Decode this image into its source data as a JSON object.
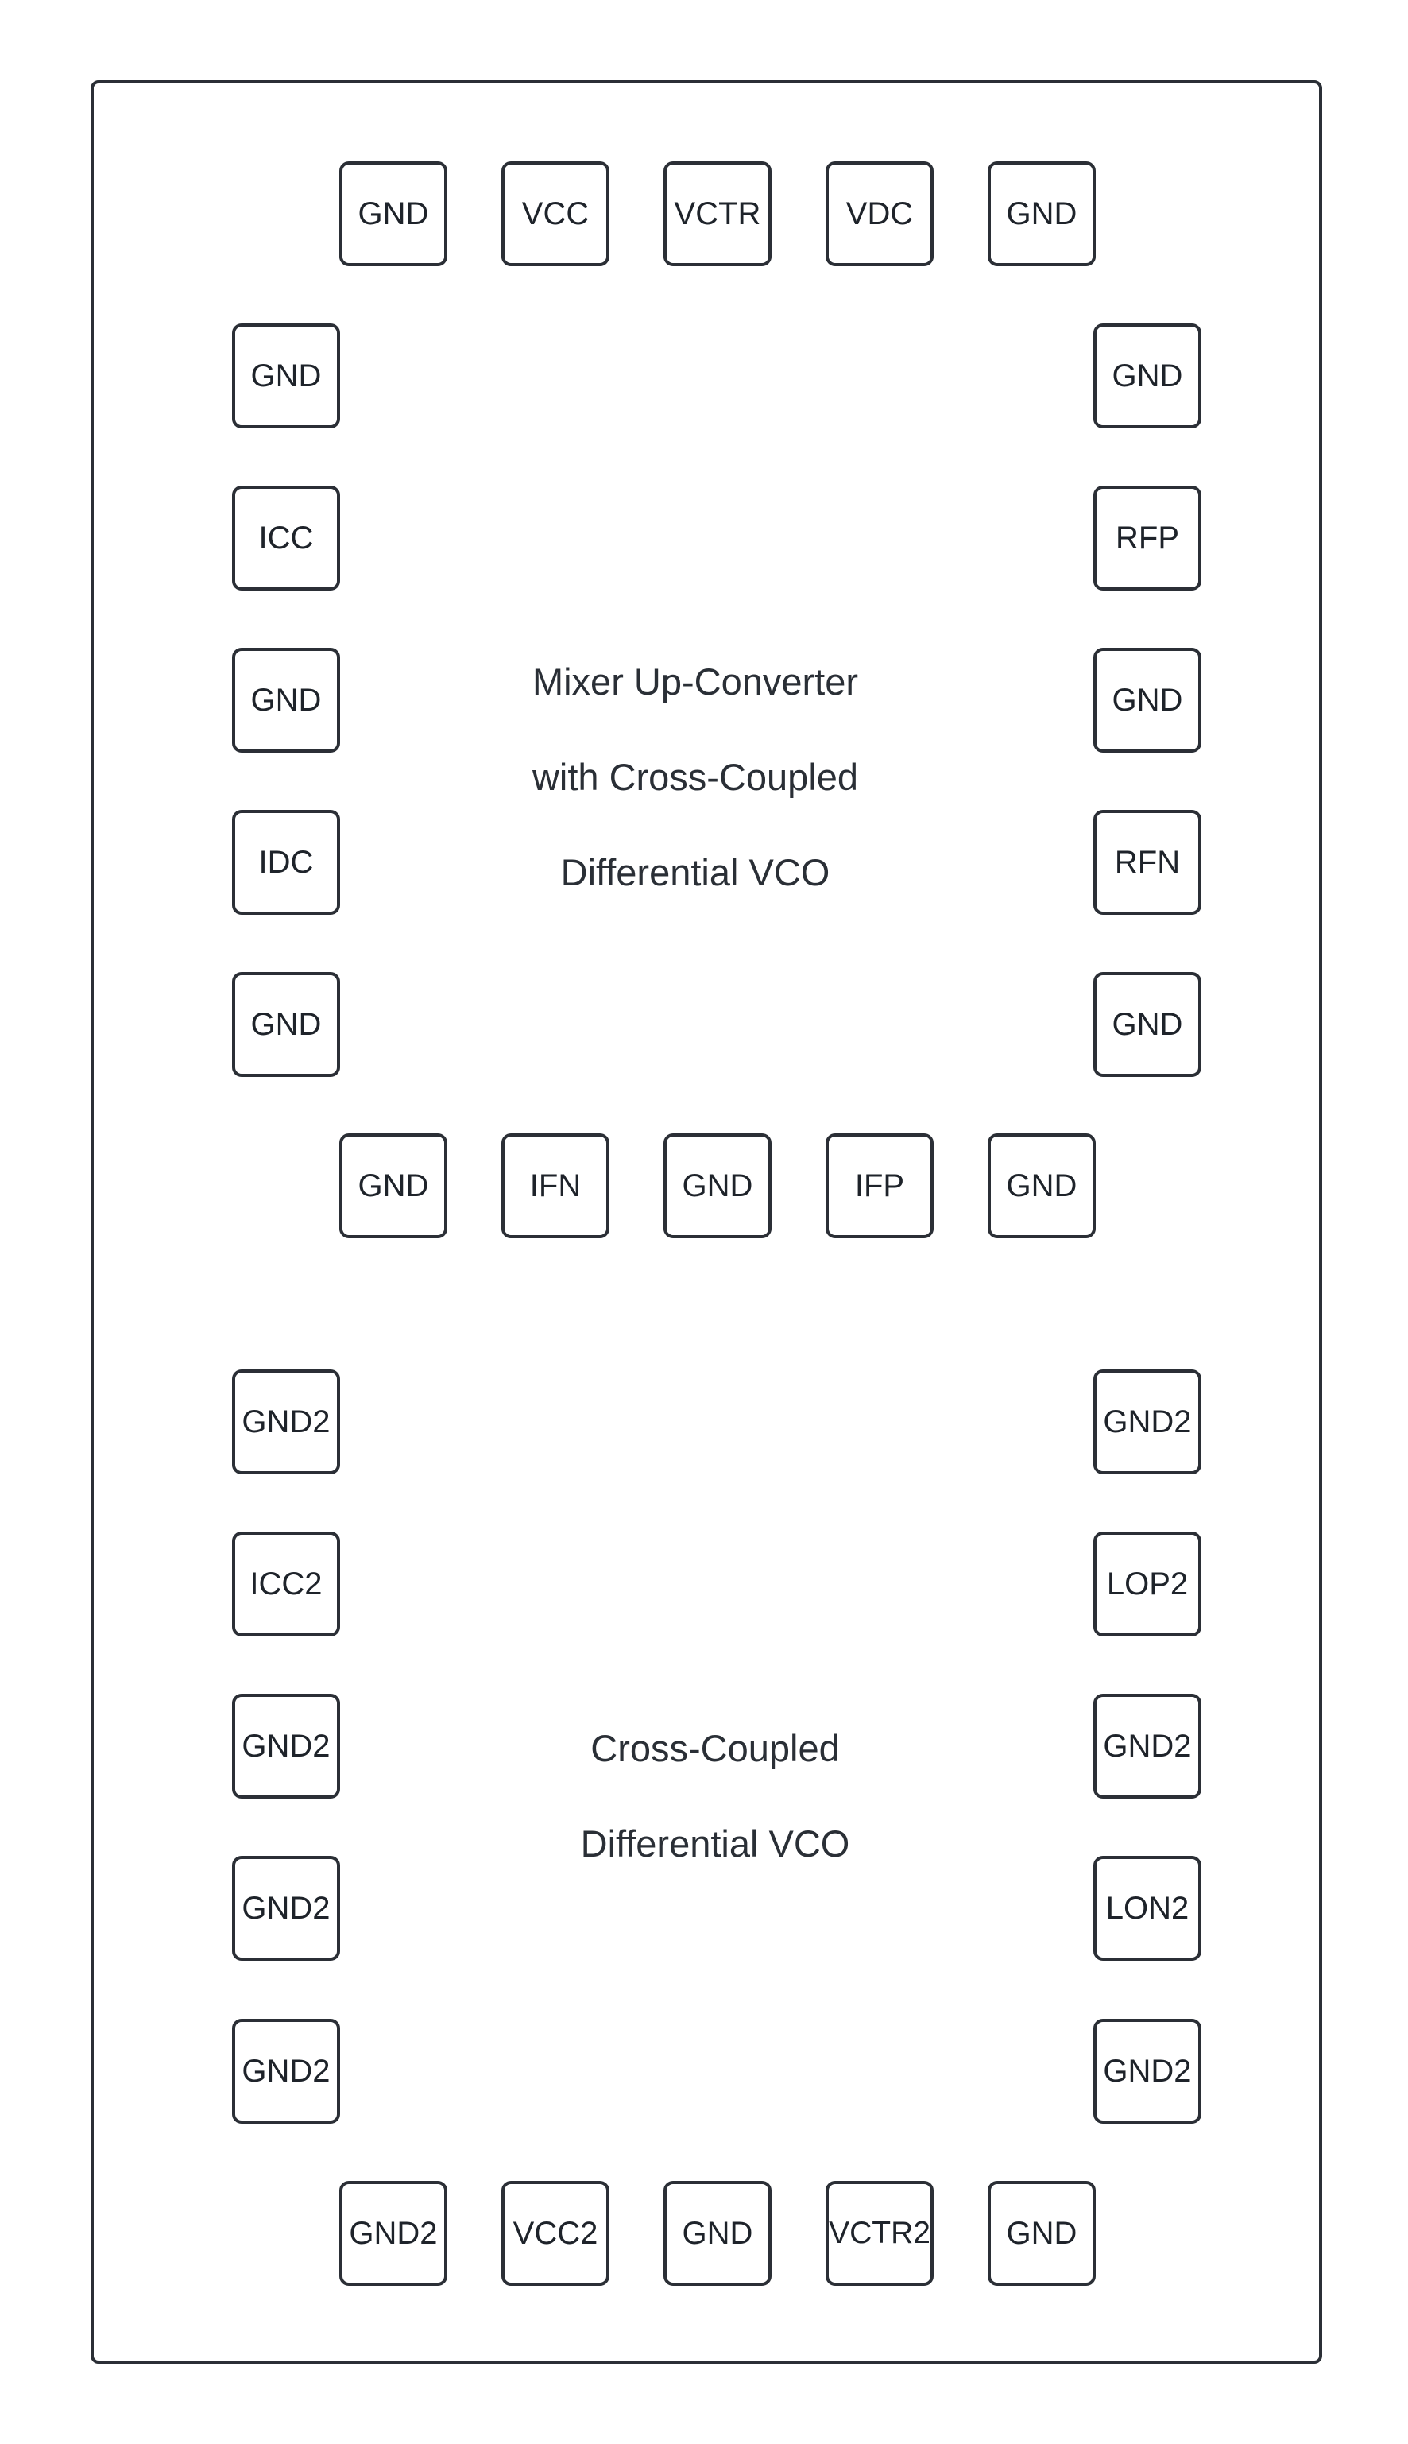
{
  "blocks": [
    {
      "lines": [
        "Mixer Up-Converter",
        "with Cross-Coupled",
        "Differential VCO"
      ],
      "pads": {
        "top": [
          "GND",
          "VCC",
          "VCTR",
          "VDC",
          "GND"
        ],
        "left": [
          "GND",
          "ICC",
          "GND",
          "IDC",
          "GND"
        ],
        "right": [
          "GND",
          "RFP",
          "GND",
          "RFN",
          "GND"
        ],
        "bottom": [
          "GND",
          "IFN",
          "GND",
          "IFP",
          "GND"
        ]
      }
    },
    {
      "lines": [
        "Cross-Coupled",
        "Differential VCO"
      ],
      "pads": {
        "left": [
          "GND2",
          "ICC2",
          "GND2",
          "GND2",
          "GND2"
        ],
        "right": [
          "GND2",
          "LOP2",
          "GND2",
          "LON2",
          "GND2"
        ],
        "bottom": [
          "GND2",
          "VCC2",
          "GND",
          "VCTR2",
          "GND"
        ]
      }
    }
  ]
}
